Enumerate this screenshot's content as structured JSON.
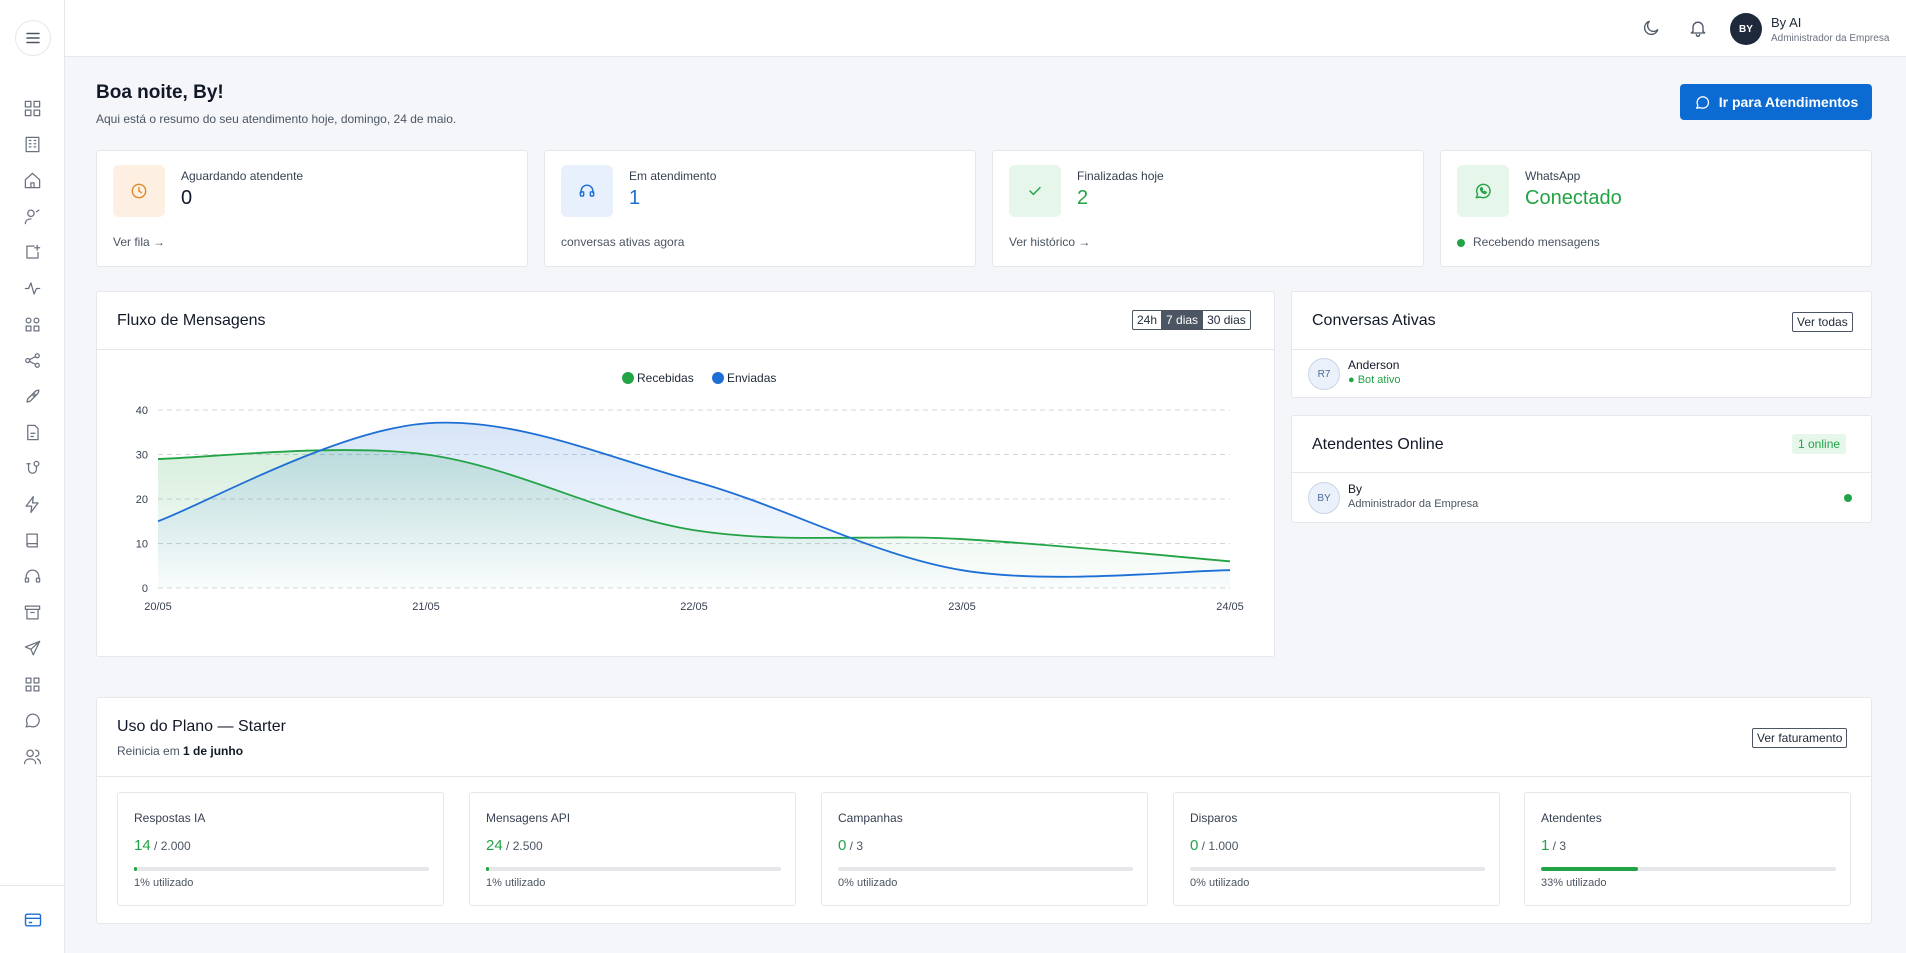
{
  "topbar": {
    "user_initials": "BY",
    "user_name": "By AI",
    "user_role": "Administrador da Empresa"
  },
  "sidebar": {
    "items": [
      "dashboard-icon",
      "building-icon",
      "home-icon",
      "contact-icon",
      "add-note-icon",
      "activity-icon",
      "apps-icon",
      "share-icon",
      "rocket-icon",
      "file-icon",
      "integration-icon",
      "zap-icon",
      "book-icon",
      "headset-icon",
      "archive-icon",
      "send-icon",
      "grid-icon",
      "chat-icon",
      "users-icon"
    ],
    "bottom": "credit-card-icon"
  },
  "header": {
    "greeting": "Boa noite, By!",
    "subtitle": "Aqui está o resumo do seu atendimento hoje, domingo, 24 de maio.",
    "cta_label": "Ir para Atendimentos"
  },
  "stats": [
    {
      "label": "Aguardando atendente",
      "value": "0",
      "footer": "Ver fila →",
      "color": "#111827",
      "icon": "clock-icon"
    },
    {
      "label": "Em atendimento",
      "value": "1",
      "footer": "conversas ativas agora",
      "color": "#1d6fd6",
      "icon": "headset-icon"
    },
    {
      "label": "Finalizadas hoje",
      "value": "2",
      "footer": "Ver histórico →",
      "color": "#22a345",
      "icon": "check-icon"
    },
    {
      "label": "WhatsApp",
      "value": "Conectado",
      "footer": "Recebendo mensagens",
      "color": "#22a345",
      "icon": "whatsapp-icon"
    }
  ],
  "flow": {
    "title": "Fluxo de Mensagens",
    "ranges": [
      "24h",
      "7 dias",
      "30 dias"
    ],
    "active_range": "7 dias"
  },
  "chart_data": {
    "type": "area",
    "categories": [
      "20/05",
      "21/05",
      "22/05",
      "23/05",
      "24/05"
    ],
    "ylim": [
      0,
      40
    ],
    "yticks": [
      0,
      10,
      20,
      30,
      40
    ],
    "legend_position": "top-center",
    "grid": true,
    "series": [
      {
        "name": "Recebidas",
        "color": "#22a345",
        "values": [
          29,
          30,
          13,
          11,
          6
        ]
      },
      {
        "name": "Enviadas",
        "color": "#1d6fd6",
        "values": [
          15,
          37,
          24,
          4,
          4
        ]
      }
    ]
  },
  "active_conversations": {
    "title": "Conversas Ativas",
    "link": "Ver todas",
    "items": [
      {
        "initials": "R7",
        "name": "Anderson",
        "status": "● Bot ativo"
      }
    ]
  },
  "agents_online": {
    "title": "Atendentes Online",
    "badge": "1 online",
    "items": [
      {
        "initials": "BY",
        "name": "By",
        "role": "Administrador da Empresa"
      }
    ]
  },
  "plan": {
    "title": "Uso do Plano — Starter",
    "reset_prefix": "Reinicia em ",
    "reset_date": "1 de junho",
    "link": "Ver faturamento",
    "items": [
      {
        "label": "Respostas IA",
        "used": "14",
        "max": " / 2.000",
        "pct_text": "1% utilizado",
        "fraction": 0.01
      },
      {
        "label": "Mensagens API",
        "used": "24",
        "max": " / 2.500",
        "pct_text": "1% utilizado",
        "fraction": 0.01
      },
      {
        "label": "Campanhas",
        "used": "0",
        "max": " / 3",
        "pct_text": "0% utilizado",
        "fraction": 0
      },
      {
        "label": "Disparos",
        "used": "0",
        "max": " / 1.000",
        "pct_text": "0% utilizado",
        "fraction": 0
      },
      {
        "label": "Atendentes",
        "used": "1",
        "max": " / 3",
        "pct_text": "33% utilizado",
        "fraction": 0.33
      }
    ]
  }
}
